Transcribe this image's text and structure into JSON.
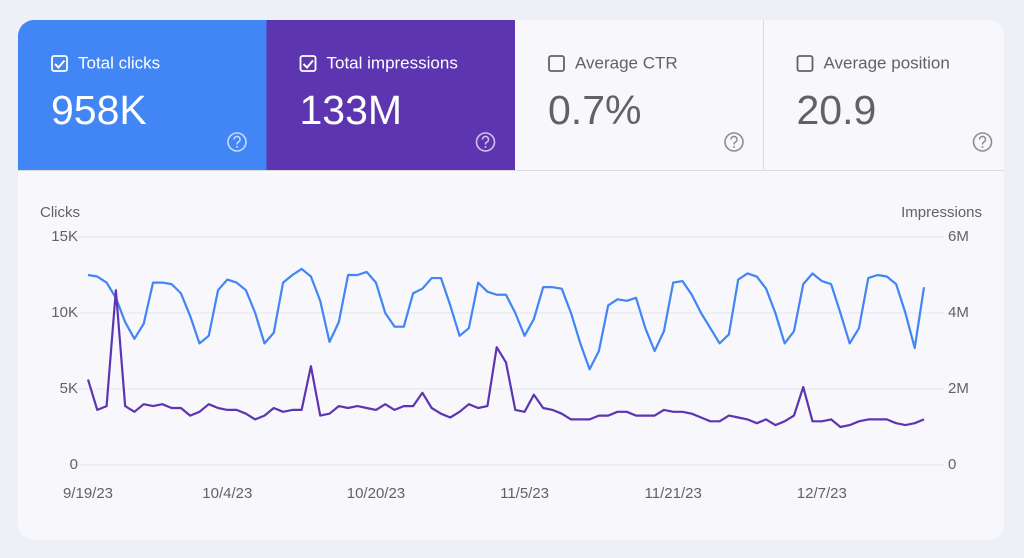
{
  "cards": [
    {
      "label": "Total clicks",
      "value": "958K",
      "checked": true,
      "color": "#4285f4"
    },
    {
      "label": "Total impressions",
      "value": "133M",
      "checked": true,
      "color": "#5e35b1"
    },
    {
      "label": "Average CTR",
      "value": "0.7%",
      "checked": false,
      "color": "#ffffff"
    },
    {
      "label": "Average position",
      "value": "20.9",
      "checked": false,
      "color": "#ffffff"
    }
  ],
  "chart_data": {
    "type": "line",
    "y_label": "Clicks",
    "y2_label": "Impressions",
    "categories": [
      "9/19/23",
      null,
      null,
      null,
      null,
      null,
      null,
      null,
      null,
      null,
      null,
      null,
      null,
      null,
      null,
      "10/4/23",
      null,
      null,
      null,
      null,
      null,
      null,
      null,
      null,
      null,
      null,
      null,
      null,
      null,
      null,
      null,
      "10/20/23",
      null,
      null,
      null,
      null,
      null,
      null,
      null,
      null,
      null,
      null,
      null,
      null,
      null,
      null,
      null,
      "11/5/23",
      null,
      null,
      null,
      null,
      null,
      null,
      null,
      null,
      null,
      null,
      null,
      null,
      null,
      null,
      null,
      "11/21/23",
      null,
      null,
      null,
      null,
      null,
      null,
      null,
      null,
      null,
      null,
      null,
      null,
      null,
      null,
      null,
      "12/7/23",
      null,
      null,
      null,
      null,
      null,
      null,
      null,
      null,
      null,
      null,
      null
    ],
    "series": [
      {
        "name": "Clicks",
        "color": "#4285f4",
        "axis": "y",
        "values": [
          12500,
          12400,
          12000,
          11000,
          9400,
          8300,
          9300,
          12000,
          12000,
          11900,
          11300,
          9800,
          8000,
          8500,
          11500,
          12200,
          12000,
          11500,
          10000,
          8000,
          8700,
          12000,
          12500,
          12900,
          12400,
          10800,
          8100,
          9400,
          12500,
          12500,
          12700,
          12000,
          10000,
          9100,
          9100,
          11300,
          11600,
          12300,
          12300,
          10500,
          8500,
          9000,
          12000,
          11400,
          11200,
          11200,
          10000,
          8500,
          9600,
          11700,
          11700,
          11600,
          10000,
          8000,
          6300,
          7500,
          10500,
          10900,
          10800,
          11000,
          9000,
          7500,
          8800,
          12000,
          12100,
          11200,
          10000,
          9000,
          8000,
          8600,
          12200,
          12600,
          12400,
          11600,
          10000,
          8000,
          8800,
          11900,
          12600,
          12100,
          11900,
          10000,
          8000,
          9000,
          12300,
          12500,
          12400,
          11900,
          10000,
          7700,
          11700
        ]
      },
      {
        "name": "Impressions",
        "color": "#5e35b1",
        "axis": "y2",
        "values": [
          2250000,
          1450000,
          1550000,
          4600000,
          1550000,
          1400000,
          1600000,
          1550000,
          1600000,
          1500000,
          1500000,
          1300000,
          1400000,
          1600000,
          1500000,
          1450000,
          1450000,
          1350000,
          1200000,
          1300000,
          1500000,
          1400000,
          1450000,
          1450000,
          2600000,
          1300000,
          1350000,
          1550000,
          1500000,
          1550000,
          1500000,
          1450000,
          1600000,
          1450000,
          1550000,
          1550000,
          1900000,
          1500000,
          1350000,
          1250000,
          1400000,
          1600000,
          1500000,
          1550000,
          3100000,
          2700000,
          1450000,
          1400000,
          1850000,
          1500000,
          1450000,
          1350000,
          1200000,
          1200000,
          1200000,
          1300000,
          1300000,
          1400000,
          1400000,
          1300000,
          1300000,
          1300000,
          1450000,
          1400000,
          1400000,
          1350000,
          1250000,
          1150000,
          1150000,
          1300000,
          1250000,
          1200000,
          1100000,
          1200000,
          1050000,
          1150000,
          1300000,
          2050000,
          1150000,
          1150000,
          1200000,
          1000000,
          1050000,
          1150000,
          1200000,
          1200000,
          1200000,
          1100000,
          1050000,
          1100000,
          1200000
        ]
      }
    ],
    "ylim": [
      0,
      15000
    ],
    "yticks": [
      0,
      {
        "value": 5000,
        "label": "5K"
      },
      {
        "value": 10000,
        "label": "10K"
      },
      {
        "value": 15000,
        "label": "15K"
      }
    ],
    "y2lim": [
      0,
      6000000
    ],
    "y2ticks": [
      0,
      {
        "value": 2000000,
        "label": "2M"
      },
      {
        "value": 4000000,
        "label": "4M"
      },
      {
        "value": 6000000,
        "label": "6M"
      }
    ],
    "grid": true
  }
}
